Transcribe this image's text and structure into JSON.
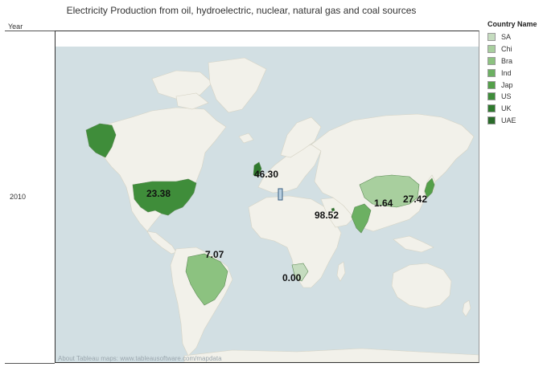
{
  "title": "Electricity Production from oil, hydroelectric, nuclear, natural gas and coal sources",
  "year_header": "Year",
  "year_value": "2010",
  "attribution": "About Tableau maps: www.tableausoftware.com/mapdata",
  "legend": {
    "title": "Country Name",
    "items": [
      {
        "label": "SA",
        "color": "#c5dcbf"
      },
      {
        "label": "Chi",
        "color": "#a8cf9e"
      },
      {
        "label": "Bra",
        "color": "#8cc280"
      },
      {
        "label": "Ind",
        "color": "#6cb062"
      },
      {
        "label": "Jap",
        "color": "#54a049"
      },
      {
        "label": "US",
        "color": "#3f8d3a"
      },
      {
        "label": "UK",
        "color": "#2f7a2e"
      },
      {
        "label": "UAE",
        "color": "#2a6b2a"
      }
    ]
  },
  "map": {
    "water_color": "#d2dfe3",
    "land_color": "#f2f1ea",
    "labels": {
      "uk": "46.30",
      "us": "23.38",
      "brazil": "7.07",
      "south_africa": "0.00",
      "india": "98.52",
      "china": "1.64",
      "japan": "27.42"
    }
  }
}
